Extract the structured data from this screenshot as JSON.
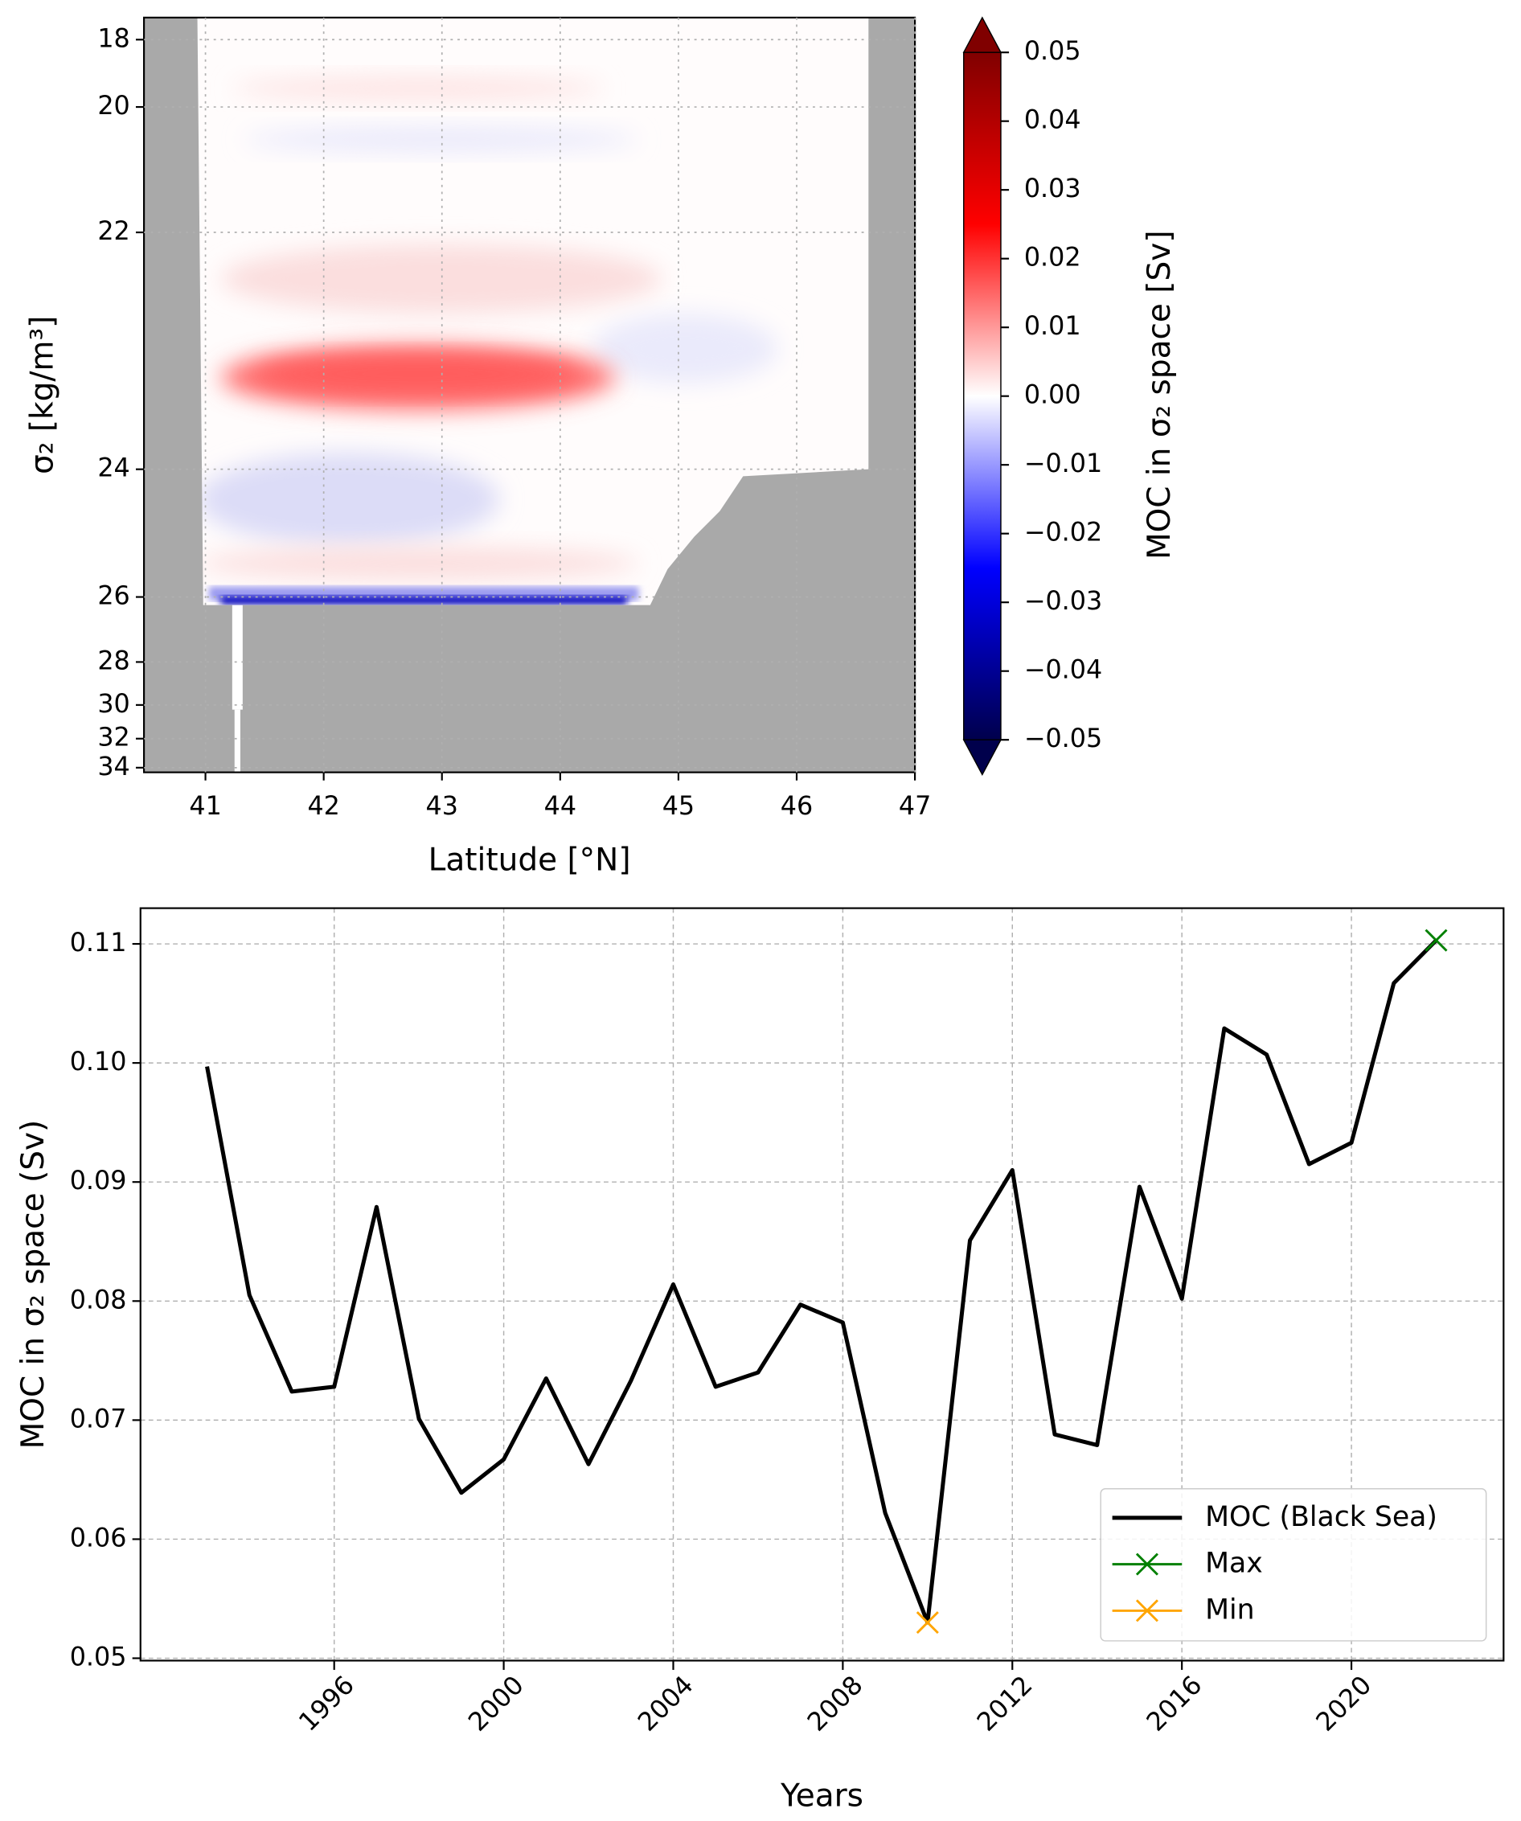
{
  "chart_data": [
    {
      "type": "heatmap",
      "xlabel": "Latitude [°N]",
      "ylabel": "σ₂ [kg/m³]",
      "xlim": [
        40.48,
        47
      ],
      "xticks": [
        41,
        42,
        43,
        44,
        45,
        46,
        47
      ],
      "ylim": [
        17.4,
        34.1
      ],
      "yticks": [
        18,
        20,
        22,
        24,
        26,
        28,
        30,
        32,
        34
      ],
      "grid": true,
      "colorbar": {
        "label": "MOC in σ₂ space [Sv]",
        "clim": [
          -0.05,
          0.05
        ],
        "ticks": [
          0.05,
          0.04,
          0.03,
          0.02,
          0.01,
          {
            "value": 0,
            "label": "0.00"
          },
          {
            "value": -0.01,
            "label": "−0.01"
          },
          {
            "value": -0.02,
            "label": "−0.02"
          },
          {
            "value": -0.03,
            "label": "−0.03"
          },
          {
            "value": -0.04,
            "label": "−0.04"
          },
          {
            "value": -0.05,
            "label": "−0.05"
          }
        ]
      }
    },
    {
      "type": "line",
      "xlabel": "Years",
      "ylabel": "MOC in σ₂ space (Sv)",
      "xlim": [
        1991.43,
        2023.59
      ],
      "xticks": [
        1996,
        2000,
        2004,
        2008,
        2012,
        2016,
        2020
      ],
      "ylim": [
        0.0498,
        0.113
      ],
      "yticks": [
        0.05,
        0.06,
        0.07,
        0.08,
        0.09,
        {
          "value": 0.1,
          "label": "0.10"
        },
        0.11
      ],
      "grid": true,
      "legend": "lower right",
      "series": [
        {
          "name": "MOC (Black Sea)",
          "color": "#000000",
          "x": [
            1993,
            1994,
            1995,
            1996,
            1997,
            1998,
            1999,
            2000,
            2001,
            2002,
            2003,
            2004,
            2005,
            2006,
            2007,
            2008,
            2009,
            2010,
            2011,
            2012,
            2013,
            2014,
            2015,
            2016,
            2017,
            2018,
            2019,
            2020,
            2021,
            2022
          ],
          "values": [
            0.0997,
            0.0805,
            0.0724,
            0.0728,
            0.0879,
            0.0701,
            0.0639,
            0.0667,
            0.0735,
            0.0663,
            0.0733,
            0.0814,
            0.0728,
            0.074,
            0.0797,
            0.0782,
            0.0622,
            0.053,
            0.0851,
            0.091,
            0.0688,
            0.0679,
            0.0896,
            0.0802,
            0.1029,
            0.1007,
            0.0915,
            0.0933,
            0.1067,
            0.1103
          ]
        },
        {
          "name": "Max",
          "color": "#008000",
          "marker": "x",
          "x": [
            2022
          ],
          "values": [
            0.1103
          ]
        },
        {
          "name": "Min",
          "color": "#ffa500",
          "marker": "x",
          "x": [
            2010
          ],
          "values": [
            0.053
          ]
        }
      ]
    }
  ]
}
